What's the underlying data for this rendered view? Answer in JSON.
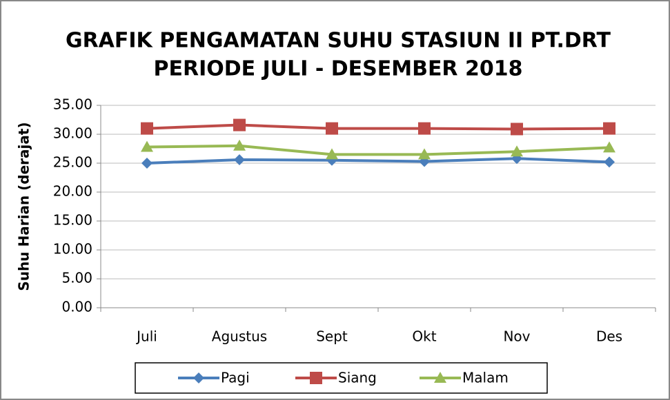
{
  "chart_data": {
    "type": "line",
    "title": [
      "GRAFIK PENGAMATAN SUHU STASIUN II PT.DRT",
      "PERIODE JULI - DESEMBER 2018"
    ],
    "y_label": "Suhu Harian (derajat)",
    "categories": [
      "Juli",
      "Agustus",
      "Sept",
      "Okt",
      "Nov",
      "Des"
    ],
    "series": [
      {
        "name": "Pagi",
        "color": "#4a7ebb",
        "marker": "diamond",
        "values": [
          25.0,
          25.6,
          25.5,
          25.3,
          25.8,
          25.2
        ]
      },
      {
        "name": "Siang",
        "color": "#be4b48",
        "marker": "square",
        "values": [
          31.0,
          31.6,
          31.0,
          31.0,
          30.9,
          31.0
        ]
      },
      {
        "name": "Malam",
        "color": "#98b954",
        "marker": "triangle",
        "values": [
          27.8,
          28.0,
          26.5,
          26.5,
          27.0,
          27.7
        ]
      }
    ],
    "ylim": [
      0,
      35
    ],
    "yticks": [
      {
        "value": 0,
        "label": "0.00"
      },
      {
        "value": 5,
        "label": "5.00"
      },
      {
        "value": 10,
        "label": "10.00"
      },
      {
        "value": 15,
        "label": "15.00"
      },
      {
        "value": 20,
        "label": "20.00"
      },
      {
        "value": 25,
        "label": "25.00"
      },
      {
        "value": 30,
        "label": "30.00"
      },
      {
        "value": 35,
        "label": "35.00"
      }
    ],
    "grid": true,
    "legend": "bottom"
  }
}
